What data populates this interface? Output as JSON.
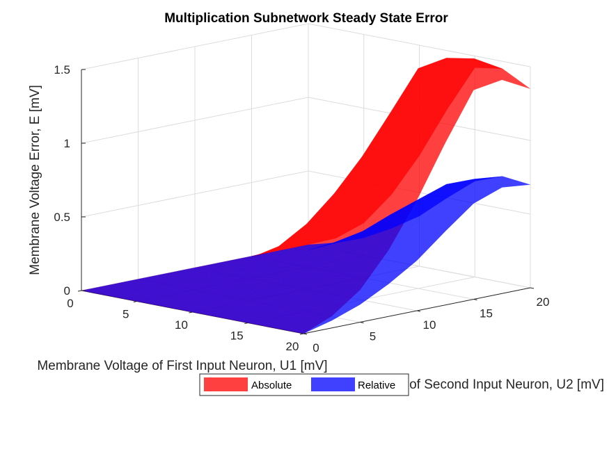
{
  "chart_data": {
    "type": "surface3d",
    "title": "Multiplication Subnetwork Steady State Error",
    "xlabel": "Membrane Voltage of First Input Neuron, U1 [mV]",
    "ylabel": "Membrane Voltage of Second Input Neuron, U2 [mV]",
    "zlabel": "Membrane Voltage Error, E [mV]",
    "xlim": [
      0,
      20
    ],
    "ylim": [
      0,
      20
    ],
    "zlim": [
      0,
      1.5
    ],
    "x_ticks": [
      "0",
      "5",
      "10",
      "15",
      "20"
    ],
    "y_ticks": [
      "0",
      "5",
      "10",
      "15",
      "20"
    ],
    "z_ticks": [
      "0",
      "0.5",
      "1",
      "1.5"
    ],
    "grid": true,
    "legend_position": "bottom-center",
    "u1": [
      0,
      2.5,
      5,
      7.5,
      10,
      12.5,
      15,
      17.5,
      20
    ],
    "u2": [
      0,
      2.5,
      5,
      7.5,
      10,
      12.5,
      15,
      17.5,
      20
    ],
    "series": [
      {
        "name": "Absolute",
        "color": "#ff0000",
        "opacity": 0.75,
        "edge_u1_20": [
          0,
          0.08,
          0.22,
          0.45,
          0.75,
          1.1,
          1.42,
          1.45,
          1.35
        ],
        "edge_u2_20": [
          0,
          0.08,
          0.22,
          0.45,
          0.75,
          1.1,
          1.42,
          1.45,
          1.35
        ]
      },
      {
        "name": "Relative",
        "color": "#0000ff",
        "opacity": 0.75,
        "edge_u1_20": [
          0,
          0.05,
          0.12,
          0.22,
          0.34,
          0.5,
          0.65,
          0.72,
          0.7
        ],
        "edge_u2_20": [
          0,
          0.05,
          0.12,
          0.22,
          0.34,
          0.5,
          0.65,
          0.72,
          0.7
        ]
      }
    ]
  }
}
